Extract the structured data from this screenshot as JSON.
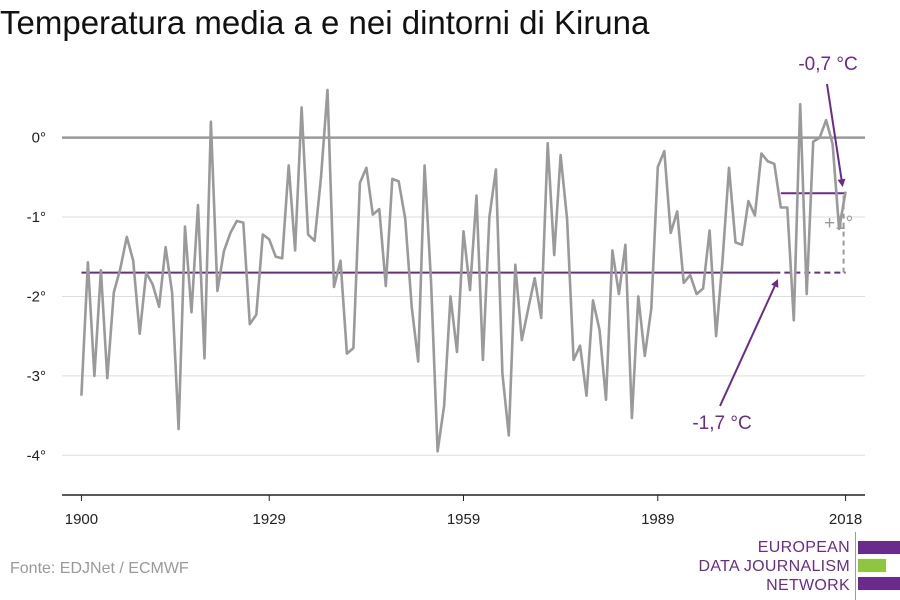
{
  "colors": {
    "series": "#9a9a9a",
    "baseline": "#6a2b8c",
    "zero_line": "#9a9a9a",
    "grid": "#dddddd",
    "axis": "#222222",
    "logo_purple": "#6a2b8c",
    "logo_green": "#8dc63f"
  },
  "chart_data": {
    "type": "line",
    "title": "Temperatura media a e nei dintorni di Kiruna",
    "xlabel": "",
    "ylabel": "",
    "xlim": [
      1897,
      2021
    ],
    "ylim": [
      -4.5,
      0.7
    ],
    "grid": true,
    "x_ticks": [
      1900,
      1929,
      1959,
      1989,
      2018
    ],
    "x_tick_labels": [
      "1900",
      "1929",
      "1959",
      "1989",
      "2018"
    ],
    "y_ticks": [
      0,
      -1,
      -2,
      -3,
      -4
    ],
    "y_tick_labels": [
      "0°",
      "-1°",
      "-2°",
      "-3°",
      "-4°"
    ],
    "x": [
      1900,
      1901,
      1902,
      1903,
      1904,
      1905,
      1906,
      1907,
      1908,
      1909,
      1910,
      1911,
      1912,
      1913,
      1914,
      1915,
      1916,
      1917,
      1918,
      1919,
      1920,
      1921,
      1922,
      1923,
      1924,
      1925,
      1926,
      1927,
      1928,
      1929,
      1930,
      1931,
      1932,
      1933,
      1934,
      1935,
      1936,
      1937,
      1938,
      1939,
      1940,
      1941,
      1942,
      1943,
      1944,
      1945,
      1946,
      1947,
      1948,
      1949,
      1950,
      1951,
      1952,
      1953,
      1954,
      1955,
      1956,
      1957,
      1958,
      1959,
      1960,
      1961,
      1962,
      1963,
      1964,
      1965,
      1966,
      1967,
      1968,
      1969,
      1970,
      1971,
      1972,
      1973,
      1974,
      1975,
      1976,
      1977,
      1978,
      1979,
      1980,
      1981,
      1982,
      1983,
      1984,
      1985,
      1986,
      1987,
      1988,
      1989,
      1990,
      1991,
      1992,
      1993,
      1994,
      1995,
      1996,
      1997,
      1998,
      1999,
      2000,
      2001,
      2002,
      2003,
      2004,
      2005,
      2006,
      2007,
      2008,
      2009,
      2010,
      2011,
      2012,
      2013,
      2014,
      2015,
      2016,
      2017,
      2018
    ],
    "values": [
      -3.25,
      -1.57,
      -3.0,
      -1.67,
      -3.03,
      -1.95,
      -1.65,
      -1.25,
      -1.55,
      -2.47,
      -1.7,
      -1.85,
      -2.13,
      -1.38,
      -1.95,
      -3.67,
      -1.12,
      -2.2,
      -0.85,
      -2.78,
      0.2,
      -1.93,
      -1.43,
      -1.2,
      -1.05,
      -1.07,
      -2.35,
      -2.23,
      -1.22,
      -1.28,
      -1.5,
      -1.52,
      -0.35,
      -1.42,
      0.38,
      -1.22,
      -1.3,
      -0.5,
      0.6,
      -1.88,
      -1.55,
      -2.72,
      -2.65,
      -0.57,
      -0.38,
      -0.97,
      -0.9,
      -1.87,
      -0.52,
      -0.55,
      -1.02,
      -2.13,
      -2.82,
      -0.35,
      -1.83,
      -3.95,
      -3.38,
      -2.0,
      -2.7,
      -1.18,
      -1.92,
      -0.73,
      -2.8,
      -1.0,
      -0.4,
      -2.97,
      -3.75,
      -1.6,
      -2.55,
      -2.15,
      -1.77,
      -2.27,
      -0.07,
      -1.48,
      -0.22,
      -1.03,
      -2.8,
      -2.62,
      -3.25,
      -2.05,
      -2.42,
      -3.3,
      -1.42,
      -1.97,
      -1.35,
      -3.53,
      -2.0,
      -2.75,
      -2.15,
      -0.37,
      -0.17,
      -1.2,
      -0.93,
      -1.83,
      -1.73,
      -1.97,
      -1.9,
      -1.17,
      -2.5,
      -1.55,
      -0.38,
      -1.32,
      -1.35,
      -0.8,
      -0.98,
      -0.2,
      -0.3,
      -0.33,
      -0.88,
      -0.88,
      -2.3,
      0.42,
      -1.97,
      -0.05,
      0.0,
      0.22,
      -0.08,
      -1.15,
      -0.68
    ],
    "reference_lines": [
      {
        "value": -1.7,
        "from": 1900,
        "to": 2018,
        "dashed_from": 2007
      },
      {
        "value": -0.7,
        "from": 2008,
        "to": 2018
      }
    ],
    "annotations": [
      {
        "text": "-0,7 °C",
        "target_x": 2017,
        "target_y": -0.7
      },
      {
        "text": "-1,7 °C",
        "target_x": 2007,
        "target_y": -1.7
      },
      {
        "text": "+1°",
        "x": 2018,
        "from": -1.7,
        "to": -0.7
      }
    ],
    "source": "Fonte: EDJNet / ECMWF"
  },
  "logo": {
    "lines": [
      "EUROPEAN",
      "DATA JOURNALISM",
      "NETWORK"
    ]
  }
}
